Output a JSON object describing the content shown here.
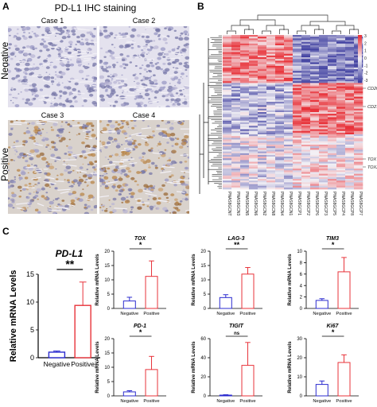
{
  "panels": {
    "a": "A",
    "b": "B",
    "c": "C"
  },
  "ihc": {
    "title": "PD-L1 IHC staining",
    "row_labels": [
      "Negative",
      "Positive"
    ],
    "cases": [
      "Case 1",
      "Case 2",
      "Case 3",
      "Case 4"
    ]
  },
  "heatmap": {
    "scale_ticks": [
      "3",
      "2",
      "1",
      "0",
      "-1",
      "-2",
      "-3"
    ],
    "gene_labels": [
      "CD200",
      "CD274",
      "TOX",
      "TOX2"
    ],
    "column_labels": [
      "PNAS8GCNT",
      "PNAS8GCN3",
      "PNAS8GCN5",
      "PNAS8GCN6",
      "PNAS8GCN2",
      "PNAS8GCN8",
      "PNAS8GCN4",
      "PNAS8GCN1",
      "PNAS8GCP1",
      "PNAS8GCP2",
      "PNAS8GCP6",
      "PNAS8GCP3",
      "PNAS8GCP5",
      "PNAS8GCP4",
      "PNAS8GCP8",
      "PNAS8GCP7"
    ],
    "colors": {
      "high": "#e8333a",
      "mid": "#f4f2f6",
      "low": "#3f3fa0"
    }
  },
  "chart_data": [
    {
      "type": "bar",
      "title": "PD-L1",
      "ylabel": "Relative mRNA Levels",
      "categories": [
        "Negative",
        "Positive"
      ],
      "values": [
        1.0,
        9.4
      ],
      "errors": [
        0.2,
        4.2
      ],
      "ylim": [
        0,
        15
      ],
      "yticks": [
        "0",
        "5",
        "10",
        "15"
      ],
      "significance": "**"
    },
    {
      "type": "bar",
      "title": "TOX",
      "ylabel": "Relative mRNA Levels",
      "categories": [
        "Negative",
        "Positive"
      ],
      "values": [
        2.6,
        11.2
      ],
      "errors": [
        1.3,
        5.4
      ],
      "ylim": [
        0,
        20
      ],
      "yticks": [
        "0",
        "5",
        "10",
        "15",
        "20"
      ],
      "significance": "*"
    },
    {
      "type": "bar",
      "title": "LAG-3",
      "ylabel": "Relative mRNA Levels",
      "categories": [
        "Negative",
        "Positive"
      ],
      "values": [
        3.8,
        12.0
      ],
      "errors": [
        1.0,
        2.3
      ],
      "ylim": [
        0,
        20
      ],
      "yticks": [
        "0",
        "5",
        "10",
        "15",
        "20"
      ],
      "significance": "**"
    },
    {
      "type": "bar",
      "title": "TIM3",
      "ylabel": "Relative mRNA Levels",
      "categories": [
        "Negative",
        "Positive"
      ],
      "values": [
        1.4,
        6.4
      ],
      "errors": [
        0.3,
        2.5
      ],
      "ylim": [
        0,
        10
      ],
      "yticks": [
        "0",
        "2",
        "4",
        "6",
        "8",
        "10"
      ],
      "significance": "*"
    },
    {
      "type": "bar",
      "title": "PD-1",
      "ylabel": "Relative mRNA Levels",
      "categories": [
        "Negative",
        "Positive"
      ],
      "values": [
        1.4,
        9.2
      ],
      "errors": [
        0.4,
        4.6
      ],
      "ylim": [
        0,
        20
      ],
      "yticks": [
        "0",
        "5",
        "10",
        "15",
        "20"
      ],
      "significance": "*"
    },
    {
      "type": "bar",
      "title": "TIGIT",
      "ylabel": "Relative mRNA Levels",
      "categories": [
        "Negative",
        "Positive"
      ],
      "values": [
        0.8,
        32.0
      ],
      "errors": [
        0.4,
        24.0
      ],
      "ylim": [
        0,
        60
      ],
      "yticks": [
        "0",
        "20",
        "40",
        "60"
      ],
      "significance": "ns"
    },
    {
      "type": "bar",
      "title": "Ki67",
      "ylabel": "Relative mRNA Levels",
      "categories": [
        "Negative",
        "Positive"
      ],
      "values": [
        6.0,
        17.5
      ],
      "errors": [
        1.8,
        4.0
      ],
      "ylim": [
        0,
        30
      ],
      "yticks": [
        "0",
        "10",
        "20",
        "30"
      ],
      "significance": "*"
    }
  ]
}
